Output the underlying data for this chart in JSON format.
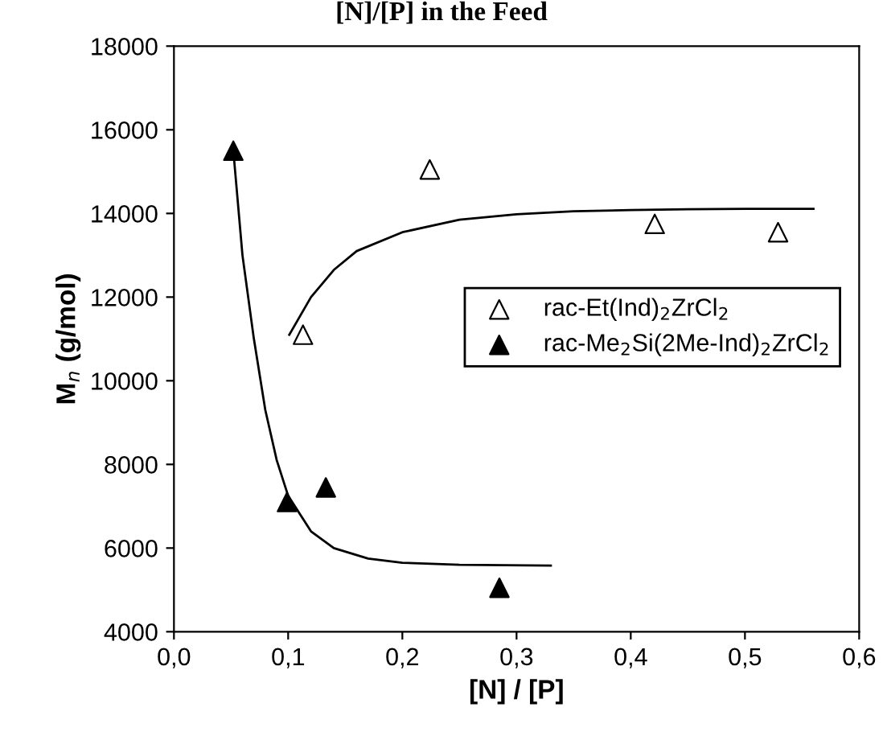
{
  "chart_data": {
    "type": "scatter",
    "title": "[N]/[P] in the Feed",
    "xlabel": "[N] / [P]",
    "ylabel": "M$_{n}$ (g/mol)",
    "xlim": [
      0,
      0.6
    ],
    "xticks": [
      {
        "value": 0,
        "label": "0,0"
      },
      {
        "value": 0.1,
        "label": "0,1"
      },
      {
        "value": 0.2,
        "label": "0,2"
      },
      {
        "value": 0.3,
        "label": "0,3"
      },
      {
        "value": 0.4,
        "label": "0,4"
      },
      {
        "value": 0.5,
        "label": "0,5"
      },
      {
        "value": 0.6,
        "label": "0,6"
      }
    ],
    "ylim": [
      4000,
      18000
    ],
    "yticks": [
      4000,
      6000,
      8000,
      10000,
      12000,
      14000,
      16000,
      18000
    ],
    "grid": false,
    "legend": "right",
    "marker": "triangle",
    "series": [
      {
        "name": "rac-Et(Ind)$_{2}$ZrCl$_{2}$",
        "color": "#ffffff",
        "x": [
          0.113,
          0.224,
          0.421,
          0.529
        ],
        "values": [
          11100,
          15050,
          13750,
          13550
        ]
      },
      {
        "name": "rac-Me$_{2}$Si(2Me-Ind)$_{2}$ZrCl$_{2}$",
        "color": "#000000",
        "x": [
          0.052,
          0.099,
          0.133,
          0.285
        ],
        "values": [
          15500,
          7100,
          7450,
          5050
        ]
      },
      {
        "type": "line",
        "marker": "none",
        "color": "#000000",
        "x": [
          0.101,
          0.12,
          0.14,
          0.16,
          0.2,
          0.25,
          0.3,
          0.35,
          0.4,
          0.45,
          0.5,
          0.56
        ],
        "values": [
          11100,
          12000,
          12650,
          13100,
          13550,
          13850,
          13980,
          14050,
          14080,
          14100,
          14110,
          14110
        ]
      },
      {
        "type": "line",
        "marker": "none",
        "color": "#000000",
        "x": [
          0.052,
          0.06,
          0.07,
          0.08,
          0.09,
          0.1,
          0.12,
          0.14,
          0.17,
          0.2,
          0.25,
          0.33
        ],
        "values": [
          15500,
          13000,
          11000,
          9300,
          8100,
          7250,
          6400,
          6000,
          5750,
          5650,
          5600,
          5580
        ]
      }
    ]
  }
}
